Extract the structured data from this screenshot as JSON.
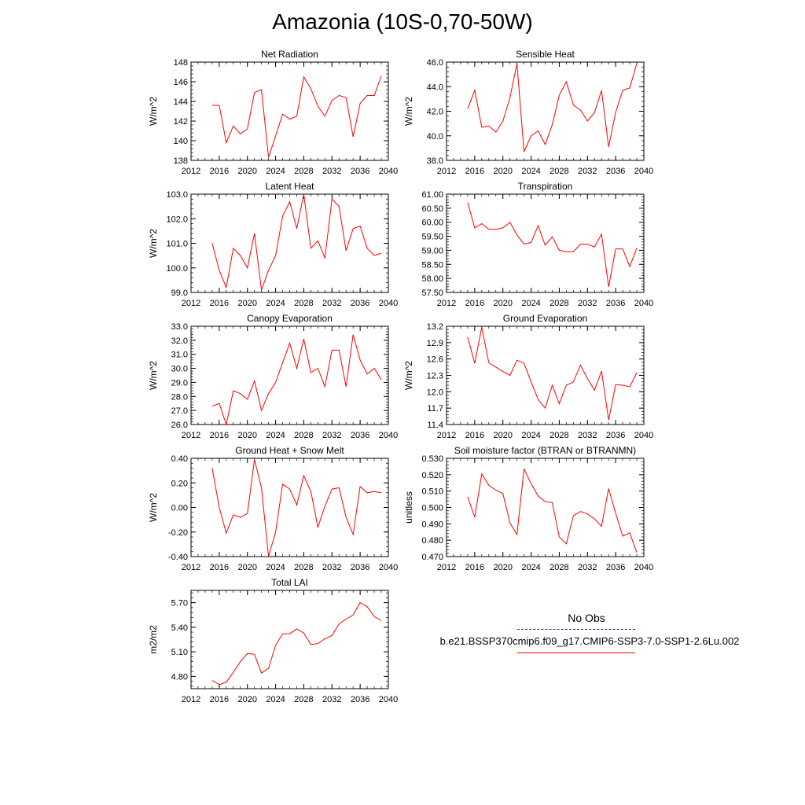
{
  "title": "Amazonia (10S-0,70-50W)",
  "legend": {
    "obs_label": "No Obs",
    "model_label": "b.e21.BSSP370cmip6.f09_g17.CMIP6-SSP3-7.0-SSP1-2.6Lu.002",
    "obs_color": "#1a1a8c",
    "model_color": "#ff0000"
  },
  "chart_data": [
    {
      "type": "line",
      "title": "Net Radiation",
      "ylabel": "W/m^2",
      "xlim": [
        2012,
        2040
      ],
      "ylim": [
        138,
        148
      ],
      "xticks": [
        "2012",
        "2016",
        "2020",
        "2024",
        "2028",
        "2032",
        "2036",
        "2040"
      ],
      "yticks": [
        "138",
        "140",
        "142",
        "144",
        "146",
        "148"
      ],
      "x": [
        2015,
        2016,
        2017,
        2018,
        2019,
        2020,
        2021,
        2022,
        2023,
        2024,
        2025,
        2026,
        2027,
        2028,
        2029,
        2030,
        2031,
        2032,
        2033,
        2034,
        2035,
        2036,
        2037,
        2038,
        2039
      ],
      "values": [
        143.6,
        143.6,
        139.8,
        141.5,
        140.7,
        141.2,
        144.9,
        145.2,
        138.3,
        140.5,
        142.7,
        142.2,
        142.5,
        146.5,
        145.3,
        143.5,
        142.5,
        144.1,
        144.6,
        144.4,
        140.4,
        143.8,
        144.6,
        144.6,
        146.6
      ]
    },
    {
      "type": "line",
      "title": "Sensible Heat",
      "ylabel": "W/m^2",
      "xlim": [
        2012,
        2040
      ],
      "ylim": [
        38,
        46
      ],
      "xticks": [
        "2012",
        "2016",
        "2020",
        "2024",
        "2028",
        "2032",
        "2036",
        "2040"
      ],
      "yticks": [
        "38.0",
        "40.0",
        "42.0",
        "44.0",
        "46.0"
      ],
      "x": [
        2015,
        2016,
        2017,
        2018,
        2019,
        2020,
        2021,
        2022,
        2023,
        2024,
        2025,
        2026,
        2027,
        2028,
        2029,
        2030,
        2031,
        2032,
        2033,
        2034,
        2035,
        2036,
        2037,
        2038,
        2039
      ],
      "values": [
        42.2,
        43.7,
        40.7,
        40.8,
        40.3,
        41.2,
        43.1,
        45.9,
        38.7,
        40.0,
        40.4,
        39.3,
        40.9,
        43.3,
        44.4,
        42.5,
        42.1,
        41.2,
        41.9,
        43.7,
        39.1,
        41.9,
        43.7,
        43.9,
        45.9
      ]
    },
    {
      "type": "line",
      "title": "Latent Heat",
      "ylabel": "W/m^2",
      "xlim": [
        2012,
        2040
      ],
      "ylim": [
        99,
        103
      ],
      "xticks": [
        "2012",
        "2016",
        "2020",
        "2024",
        "2028",
        "2032",
        "2036",
        "2040"
      ],
      "yticks": [
        "99.0",
        "100.0",
        "101.0",
        "102.0",
        "103.0"
      ],
      "x": [
        2015,
        2016,
        2017,
        2018,
        2019,
        2020,
        2021,
        2022,
        2023,
        2024,
        2025,
        2026,
        2027,
        2028,
        2029,
        2030,
        2031,
        2032,
        2033,
        2034,
        2035,
        2036,
        2037,
        2038,
        2039
      ],
      "values": [
        101.0,
        99.9,
        99.2,
        100.8,
        100.5,
        100.0,
        101.4,
        99.1,
        99.9,
        100.5,
        102.1,
        102.7,
        101.6,
        103.0,
        100.8,
        101.1,
        100.4,
        102.8,
        102.5,
        100.7,
        101.6,
        101.7,
        100.8,
        100.5,
        100.6
      ]
    },
    {
      "type": "line",
      "title": "Transpiration",
      "ylabel": "",
      "xlim": [
        2012,
        2040
      ],
      "ylim": [
        57.5,
        61.0
      ],
      "xticks": [
        "2012",
        "2016",
        "2020",
        "2024",
        "2028",
        "2032",
        "2036",
        "2040"
      ],
      "yticks": [
        "57.50",
        "58.00",
        "58.50",
        "59.00",
        "59.50",
        "60.00",
        "60.50",
        "61.00"
      ],
      "x": [
        2015,
        2016,
        2017,
        2018,
        2019,
        2020,
        2021,
        2022,
        2023,
        2024,
        2025,
        2026,
        2027,
        2028,
        2029,
        2030,
        2031,
        2032,
        2033,
        2034,
        2035,
        2036,
        2037,
        2038,
        2039
      ],
      "values": [
        60.7,
        59.8,
        59.95,
        59.75,
        59.75,
        59.8,
        60.0,
        59.55,
        59.22,
        59.28,
        59.88,
        59.18,
        59.48,
        59.0,
        58.95,
        58.95,
        59.22,
        59.22,
        59.12,
        59.58,
        57.7,
        59.05,
        59.05,
        58.42,
        59.08
      ]
    },
    {
      "type": "line",
      "title": "Canopy Evaporation",
      "ylabel": "W/m^2",
      "xlim": [
        2012,
        2040
      ],
      "ylim": [
        26,
        33
      ],
      "xticks": [
        "2012",
        "2016",
        "2020",
        "2024",
        "2028",
        "2032",
        "2036",
        "2040"
      ],
      "yticks": [
        "26.0",
        "27.0",
        "28.0",
        "29.0",
        "30.0",
        "31.0",
        "32.0",
        "33.0"
      ],
      "x": [
        2015,
        2016,
        2017,
        2018,
        2019,
        2020,
        2021,
        2022,
        2023,
        2024,
        2025,
        2026,
        2027,
        2028,
        2029,
        2030,
        2031,
        2032,
        2033,
        2034,
        2035,
        2036,
        2037,
        2038,
        2039
      ],
      "values": [
        27.3,
        27.5,
        26.0,
        28.4,
        28.2,
        27.8,
        29.1,
        27.0,
        28.2,
        29.0,
        30.4,
        31.8,
        30.0,
        32.1,
        29.7,
        30.0,
        28.7,
        31.3,
        31.3,
        28.7,
        32.4,
        30.6,
        29.6,
        30.0,
        29.2
      ]
    },
    {
      "type": "line",
      "title": "Ground Evaporation",
      "ylabel": "W/m^2",
      "xlim": [
        2012,
        2040
      ],
      "ylim": [
        11.4,
        13.2
      ],
      "xticks": [
        "2012",
        "2016",
        "2020",
        "2024",
        "2028",
        "2032",
        "2036",
        "2040"
      ],
      "yticks": [
        "11.4",
        "11.7",
        "12.0",
        "12.3",
        "12.6",
        "12.9",
        "13.2"
      ],
      "x": [
        2015,
        2016,
        2017,
        2018,
        2019,
        2020,
        2021,
        2022,
        2023,
        2024,
        2025,
        2026,
        2027,
        2028,
        2029,
        2030,
        2031,
        2032,
        2033,
        2034,
        2035,
        2036,
        2037,
        2038,
        2039
      ],
      "values": [
        13.0,
        12.52,
        13.18,
        12.53,
        12.45,
        12.37,
        12.3,
        12.58,
        12.52,
        12.18,
        11.86,
        11.7,
        12.12,
        11.78,
        12.12,
        12.18,
        12.49,
        12.24,
        12.03,
        12.38,
        11.48,
        12.13,
        12.12,
        12.09,
        12.35
      ]
    },
    {
      "type": "line",
      "title": "Ground Heat + Snow Melt",
      "ylabel": "W/m^2",
      "xlim": [
        2012,
        2040
      ],
      "ylim": [
        -0.4,
        0.4
      ],
      "xticks": [
        "2012",
        "2016",
        "2020",
        "2024",
        "2028",
        "2032",
        "2036",
        "2040"
      ],
      "yticks": [
        "-0.40",
        "-0.20",
        "0.00",
        "0.20",
        "0.40"
      ],
      "x": [
        2015,
        2016,
        2017,
        2018,
        2019,
        2020,
        2021,
        2022,
        2023,
        2024,
        2025,
        2026,
        2027,
        2028,
        2029,
        2030,
        2031,
        2032,
        2033,
        2034,
        2035,
        2036,
        2037,
        2038,
        2039
      ],
      "values": [
        0.32,
        0.0,
        -0.21,
        -0.06,
        -0.08,
        -0.05,
        0.39,
        0.16,
        -0.4,
        -0.2,
        0.19,
        0.15,
        0.02,
        0.26,
        0.13,
        -0.16,
        0.01,
        0.15,
        0.16,
        -0.08,
        -0.22,
        0.17,
        0.12,
        0.13,
        0.12
      ]
    },
    {
      "type": "line",
      "title": "Soil moisture factor (BTRAN or BTRANMN)",
      "ylabel": "unitless",
      "xlim": [
        2012,
        2040
      ],
      "ylim": [
        0.47,
        0.53
      ],
      "xticks": [
        "2012",
        "2016",
        "2020",
        "2024",
        "2028",
        "2032",
        "2036",
        "2040"
      ],
      "yticks": [
        "0.470",
        "0.480",
        "0.490",
        "0.500",
        "0.510",
        "0.520",
        "0.530"
      ],
      "x": [
        2015,
        2016,
        2017,
        2018,
        2019,
        2020,
        2021,
        2022,
        2023,
        2024,
        2025,
        2026,
        2027,
        2028,
        2029,
        2030,
        2031,
        2032,
        2033,
        2034,
        2035,
        2036,
        2037,
        2038,
        2039
      ],
      "values": [
        0.5065,
        0.494,
        0.5205,
        0.5135,
        0.5105,
        0.5085,
        0.4905,
        0.4835,
        0.5235,
        0.5145,
        0.507,
        0.5035,
        0.503,
        0.482,
        0.4778,
        0.495,
        0.4975,
        0.496,
        0.493,
        0.4885,
        0.5115,
        0.4965,
        0.4825,
        0.4845,
        0.4725
      ]
    },
    {
      "type": "line",
      "title": "Total LAI",
      "ylabel": "m2/m2",
      "xlim": [
        2012,
        2040
      ],
      "ylim": [
        4.65,
        5.85
      ],
      "xticks": [
        "2012",
        "2016",
        "2020",
        "2024",
        "2028",
        "2032",
        "2036",
        "2040"
      ],
      "yticks": [
        "4.80",
        "5.10",
        "5.40",
        "5.70"
      ],
      "x": [
        2015,
        2016,
        2017,
        2018,
        2019,
        2020,
        2021,
        2022,
        2023,
        2024,
        2025,
        2026,
        2027,
        2028,
        2029,
        2030,
        2031,
        2032,
        2033,
        2034,
        2035,
        2036,
        2037,
        2038,
        2039
      ],
      "values": [
        4.75,
        4.7,
        4.73,
        4.85,
        4.98,
        5.08,
        5.07,
        4.84,
        4.9,
        5.18,
        5.32,
        5.32,
        5.38,
        5.33,
        5.19,
        5.2,
        5.26,
        5.3,
        5.44,
        5.5,
        5.55,
        5.7,
        5.65,
        5.53,
        5.48
      ]
    }
  ]
}
